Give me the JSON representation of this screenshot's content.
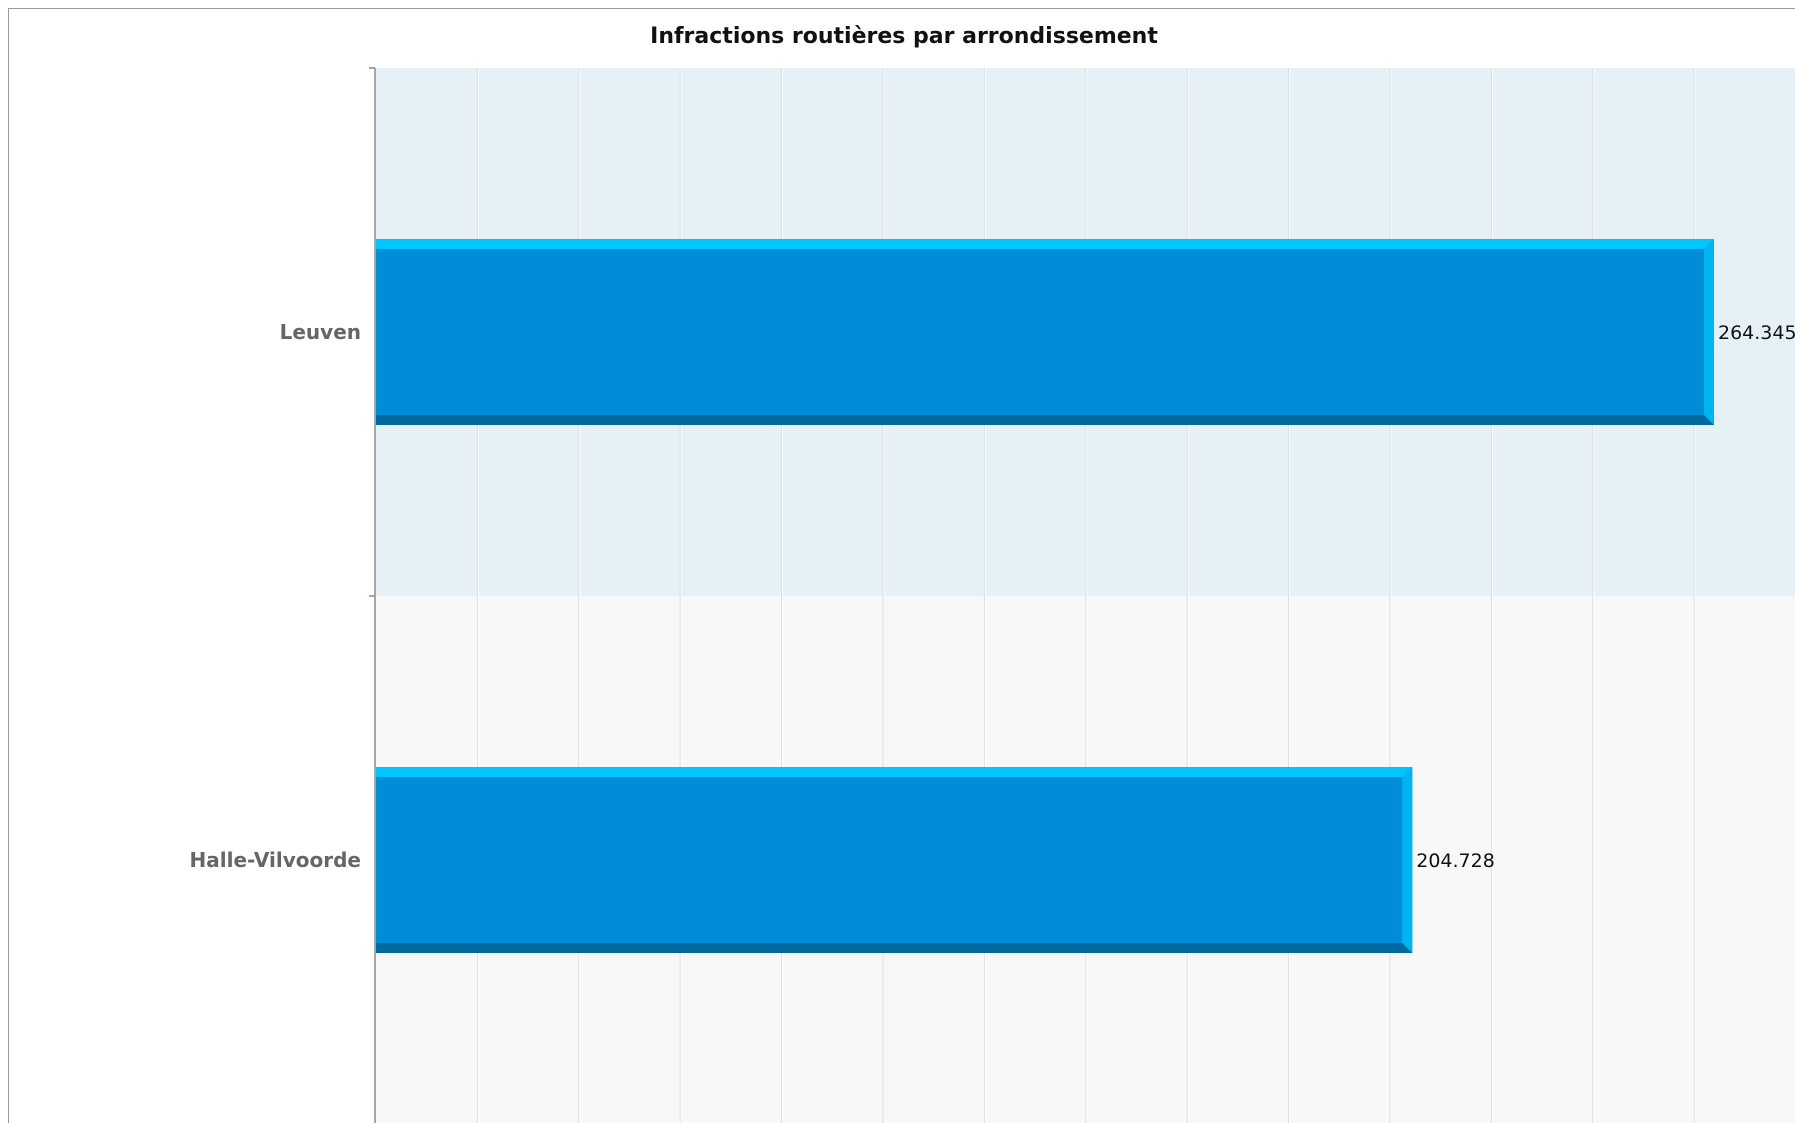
{
  "chart_data": {
    "type": "bar",
    "orientation": "horizontal",
    "title": "Infractions routières par arrondissement",
    "categories": [
      "Leuven",
      "Halle-Vilvoorde"
    ],
    "values": [
      264.345,
      204.728
    ],
    "value_labels": [
      "264.345",
      "204.728"
    ],
    "xlabel": "",
    "ylabel": "",
    "xlim": [
      0,
      280
    ],
    "grid": true,
    "colors": {
      "bar": "#008CD6",
      "bar_top": "#00C6FF",
      "bar_bottom": "#006A9E",
      "band_alt": "#E6F0F7",
      "band": "#F8F8F8",
      "grid": "#DADDE0"
    }
  }
}
